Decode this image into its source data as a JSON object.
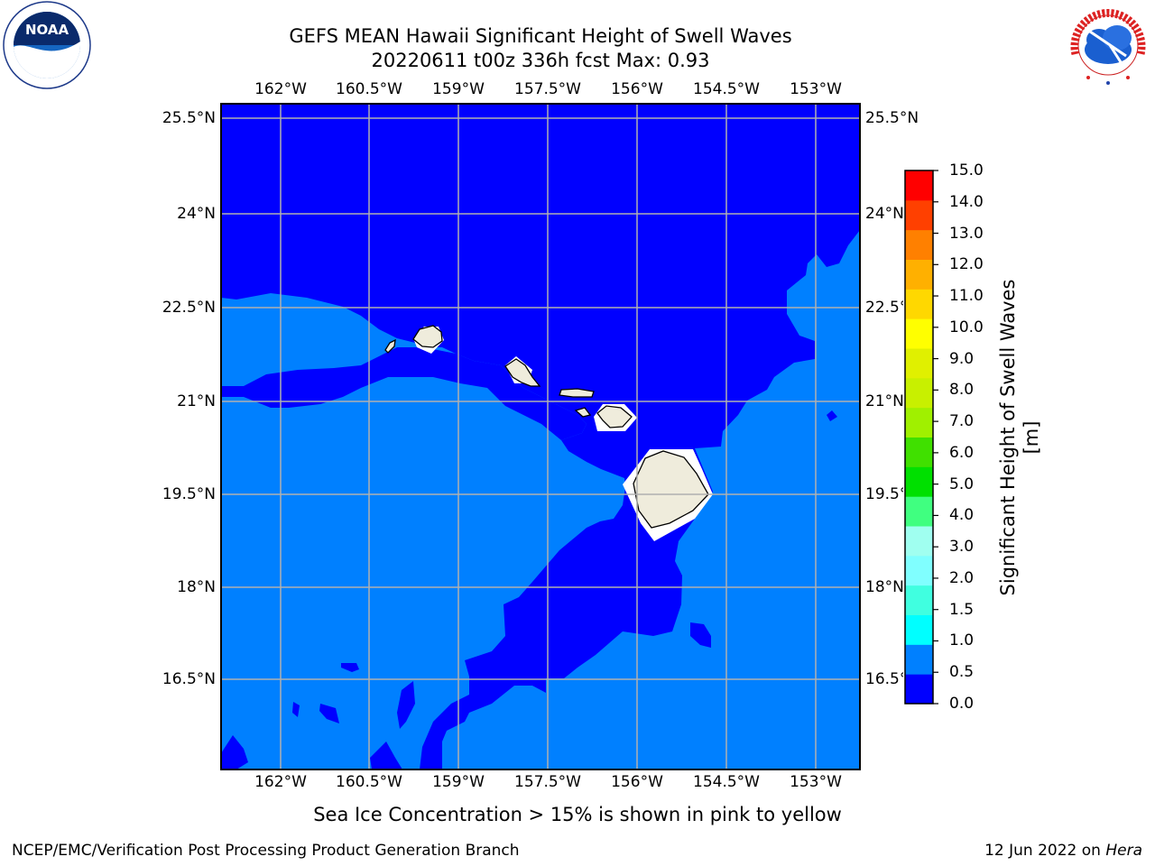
{
  "title_line1": "GEFS MEAN Hawaii Significant Height of Swell Waves",
  "title_line2": "20220611 t00z 336h fcst   Max: 0.93",
  "lon_labels": [
    "162°W",
    "160.5°W",
    "159°W",
    "157.5°W",
    "156°W",
    "154.5°W",
    "153°W"
  ],
  "lat_labels": [
    "25.5°N",
    "24°N",
    "22.5°N",
    "21°N",
    "19.5°N",
    "18°N",
    "16.5°N"
  ],
  "colorbar": {
    "label": "Significant Height of Swell Waves [m]",
    "ticks": [
      "0.0",
      "0.5",
      "1.0",
      "1.5",
      "2.0",
      "3.0",
      "4.0",
      "5.0",
      "6.0",
      "7.0",
      "8.0",
      "9.0",
      "10.0",
      "11.0",
      "12.0",
      "13.0",
      "14.0",
      "15.0"
    ],
    "colors": [
      "#0000ff",
      "#0080ff",
      "#00ffff",
      "#40ffe0",
      "#80ffff",
      "#a0fff0",
      "#40ff80",
      "#00e000",
      "#40e000",
      "#a0f000",
      "#c8f000",
      "#e0f000",
      "#ffff00",
      "#ffd800",
      "#ffb000",
      "#ff8000",
      "#ff4000",
      "#ff0000"
    ]
  },
  "map": {
    "colors": {
      "low": "#0000ff",
      "mid": "#0080ff",
      "land": "#efecdc",
      "grid": "#b0b0b0"
    }
  },
  "subtitle": "Sea Ice Concentration > 15% is shown in pink to yellow",
  "footer_left": "NCEP/EMC/Verification Post Processing Product Generation Branch",
  "footer_date": "12 Jun 2022 on",
  "footer_host": "Hera",
  "logo_left_text": "NOAA",
  "logo_right_text": "NATIONAL WEATHER SERVICE"
}
